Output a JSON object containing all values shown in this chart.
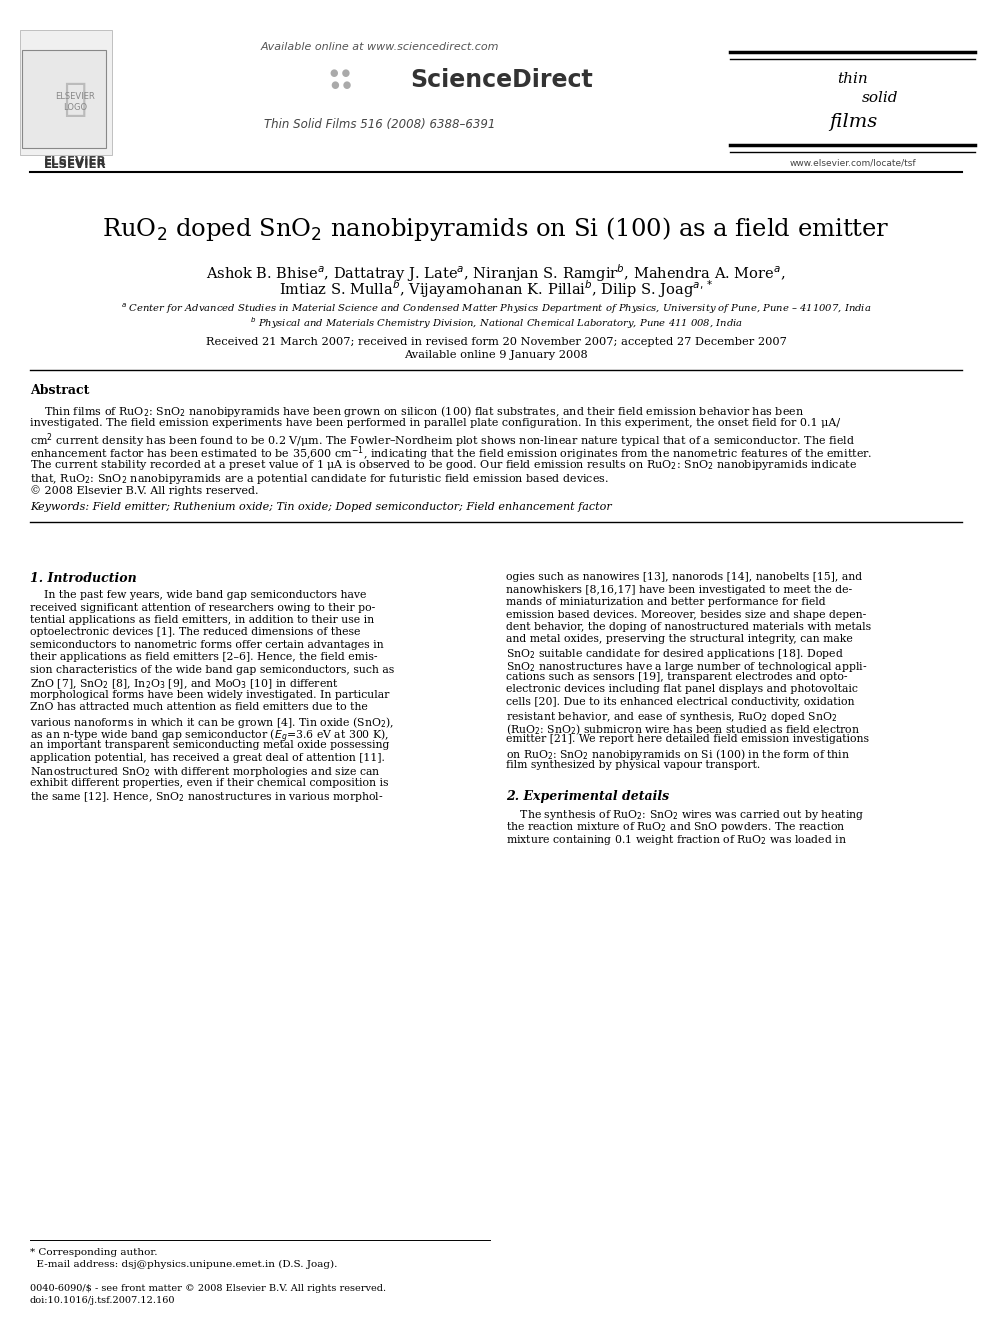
{
  "title": "RuO$_2$ doped SnO$_2$ nanobipyramids on Si (100) as a field emitter",
  "authors_line1": "Ashok B. Bhise$^a$, Dattatray J. Late$^a$, Niranjan S. Ramgir$^b$, Mahendra A. More$^a$,",
  "authors_line2": "Imtiaz S. Mulla$^b$, Vijayamohanan K. Pillai$^b$, Dilip S. Joag$^{a,*}$",
  "affil_a": "$^a$ Center for Advanced Studies in Material Science and Condensed Matter Physics Department of Physics, University of Pune, Pune – 411007, India",
  "affil_b": "$^b$ Physical and Materials Chemistry Division, National Chemical Laboratory, Pune 411 008, India",
  "received": "Received 21 March 2007; received in revised form 20 November 2007; accepted 27 December 2007",
  "available": "Available online 9 January 2008",
  "journal": "Thin Solid Films 516 (2008) 6388–6391",
  "sdirect_url": "Available online at www.sciencedirect.com",
  "sciencedirect": "ScienceDirect",
  "abstract_title": "Abstract",
  "abstract_line1": "    Thin films of RuO$_2$: SnO$_2$ nanobipyramids have been grown on silicon (100) flat substrates, and their field emission behavior has been",
  "abstract_line2": "investigated. The field emission experiments have been performed in parallel plate configuration. In this experiment, the onset field for 0.1 μA/",
  "abstract_line3": "cm$^2$ current density has been found to be 0.2 V/μm. The Fowler–Nordheim plot shows non-linear nature typical that of a semiconductor. The field",
  "abstract_line4": "enhancement factor has been estimated to be 35,600 cm$^{-1}$, indicating that the field emission originates from the nanometric features of the emitter.",
  "abstract_line5": "The current stability recorded at a preset value of 1 μA is observed to be good. Our field emission results on RuO$_2$: SnO$_2$ nanobipyramids indicate",
  "abstract_line6": "that, RuO$_2$: SnO$_2$ nanobipyramids are a potential candidate for futuristic field emission based devices.",
  "abstract_line7": "© 2008 Elsevier B.V. All rights reserved.",
  "keywords": "Keywords: Field emitter; Ruthenium oxide; Tin oxide; Doped semiconductor; Field enhancement factor",
  "sec1_title": "1. Introduction",
  "sec1_col1_lines": [
    "    In the past few years, wide band gap semiconductors have",
    "received significant attention of researchers owing to their po-",
    "tential applications as field emitters, in addition to their use in",
    "optoelectronic devices [1]. The reduced dimensions of these",
    "semiconductors to nanometric forms offer certain advantages in",
    "their applications as field emitters [2–6]. Hence, the field emis-",
    "sion characteristics of the wide band gap semiconductors, such as",
    "ZnO [7], SnO$_2$ [8], In$_2$O$_3$ [9], and MoO$_3$ [10] in different",
    "morphological forms have been widely investigated. In particular",
    "ZnO has attracted much attention as field emitters due to the",
    "various nanoforms in which it can be grown [4]. Tin oxide (SnO$_2$),",
    "as an n-type wide band gap semiconductor ($E_g$=3.6 eV at 300 K),",
    "an important transparent semiconducting metal oxide possessing",
    "application potential, has received a great deal of attention [11].",
    "Nanostructured SnO$_2$ with different morphologies and size can",
    "exhibit different properties, even if their chemical composition is",
    "the same [12]. Hence, SnO$_2$ nanostructures in various morphol-"
  ],
  "sec1_col2_lines": [
    "ogies such as nanowires [13], nanorods [14], nanobelts [15], and",
    "nanowhiskers [8,16,17] have been investigated to meet the de-",
    "mands of miniaturization and better performance for field",
    "emission based devices. Moreover, besides size and shape depen-",
    "dent behavior, the doping of nanostructured materials with metals",
    "and metal oxides, preserving the structural integrity, can make",
    "SnO$_2$ suitable candidate for desired applications [18]. Doped",
    "SnO$_2$ nanostructures have a large number of technological appli-",
    "cations such as sensors [19], transparent electrodes and opto-",
    "electronic devices including flat panel displays and photovoltaic",
    "cells [20]. Due to its enhanced electrical conductivity, oxidation",
    "resistant behavior, and ease of synthesis, RuO$_2$ doped SnO$_2$",
    "(RuO$_2$: SnO$_2$) submicron wire has been studied as field electron",
    "emitter [21]. We report here detailed field emission investigations",
    "on RuO$_2$: SnO$_2$ nanobipyramids on Si (100) in the form of thin",
    "film synthesized by physical vapour transport."
  ],
  "sec2_title": "2. Experimental details",
  "sec2_col2_lines": [
    "    The synthesis of RuO$_2$: SnO$_2$ wires was carried out by heating",
    "the reaction mixture of RuO$_2$ and SnO powders. The reaction",
    "mixture containing 0.1 weight fraction of RuO$_2$ was loaded in"
  ],
  "footnote_line1": "* Corresponding author.",
  "footnote_line2": "  E-mail address: dsj@physics.unipune.emet.in (D.S. Joag).",
  "footer1": "0040-6090/$ - see front matter © 2008 Elsevier B.V. All rights reserved.",
  "footer2": "doi:10.1016/j.tsf.2007.12.160",
  "bg": "#ffffff"
}
